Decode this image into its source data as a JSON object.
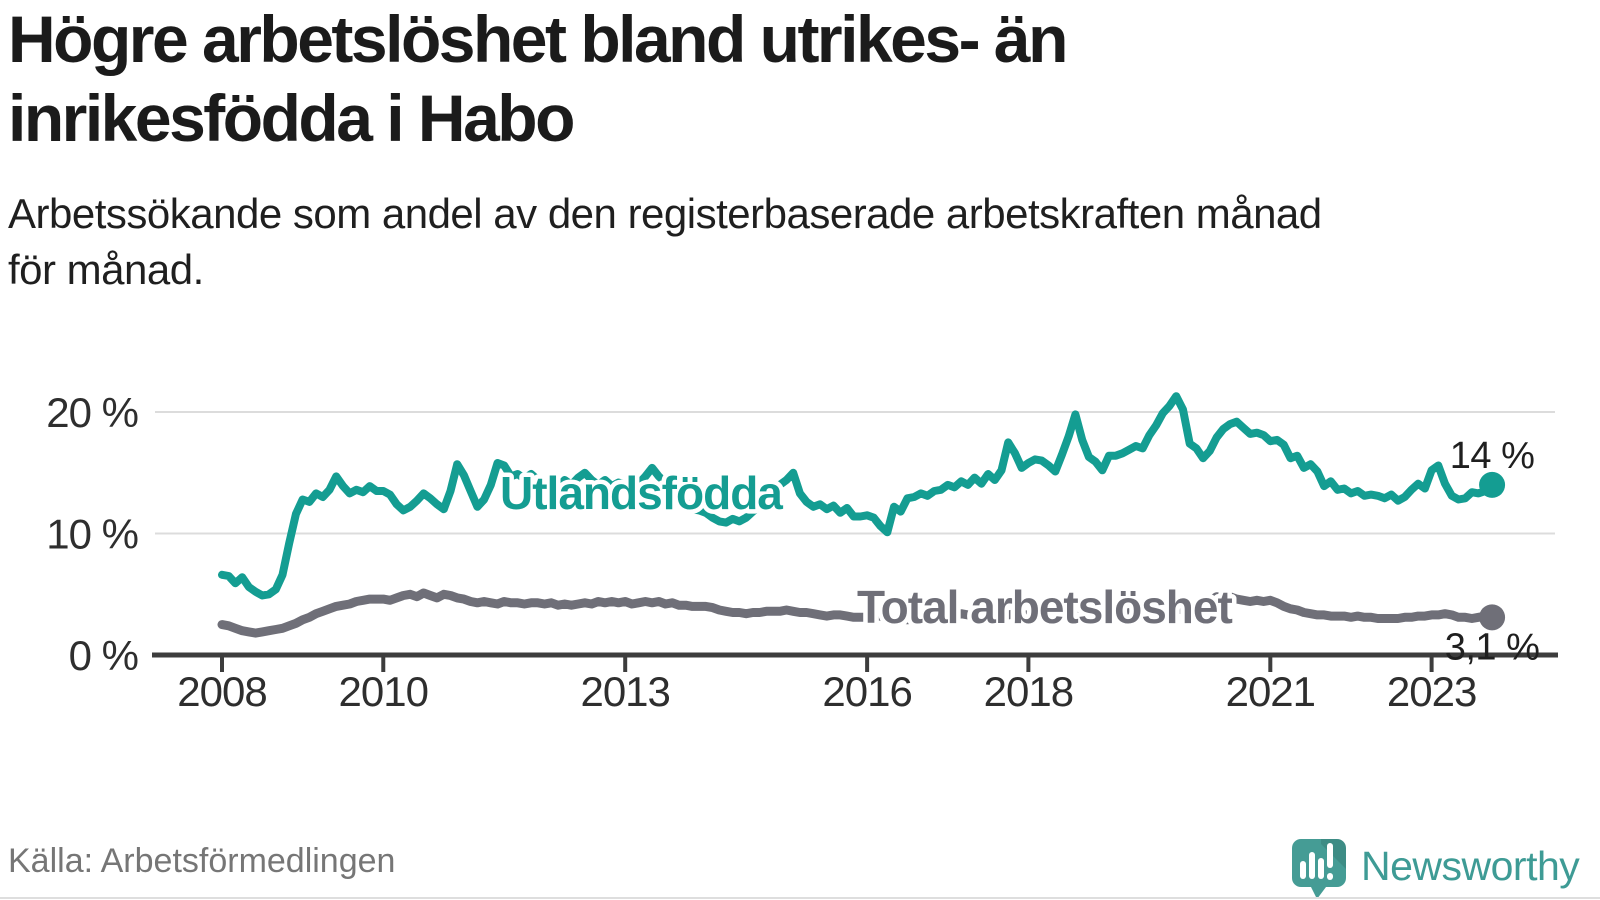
{
  "header": {
    "title_lines": [
      "Högre arbetslöshet bland utrikes- än",
      "inrikesfödda i Habo"
    ],
    "subtitle_lines": [
      "Arbetssökande som andel av den registerbaserade arbetskraften månad",
      "för månad."
    ]
  },
  "footer": {
    "source": "Källa: Arbetsförmedlingen",
    "brand": "Newsworthy"
  },
  "colors": {
    "foreign_born_line": "#149d92",
    "total_line": "#6f6f78",
    "axis": "#3d3d3d",
    "grid": "#dcdcdc",
    "tick_label": "#2e2e2e",
    "value_label": "#1f1f1f",
    "brand_teal": "#3e9b95",
    "source_text": "#767676"
  },
  "chart_data": {
    "type": "line",
    "title": "Högre arbetslöshet bland utrikes- än inrikesfödda i Habo",
    "subtitle": "Arbetssökande som andel av den registerbaserade arbetskraften månad för månad.",
    "unit": "%",
    "frequency": "monthly",
    "x_start": "2008-01",
    "x_end": "2023-10",
    "xlabel": "",
    "ylabel": "",
    "ylim": [
      0,
      22
    ],
    "grid": "horizontal",
    "legend_position": "inline-labels",
    "x_tick_years": [
      2008,
      2010,
      2013,
      2016,
      2018,
      2021,
      2023
    ],
    "y_ticks": [
      {
        "value": 0,
        "label": "0 %"
      },
      {
        "value": 10,
        "label": "10 %"
      },
      {
        "value": 20,
        "label": "20 %"
      }
    ],
    "source": "Arbetsförmedlingen",
    "series": [
      {
        "name": "Utlandsfödda",
        "color": "#149d92",
        "end_label": "14 %",
        "end_value": 14.0,
        "values": [
          6.6,
          6.5,
          5.9,
          6.4,
          5.6,
          5.2,
          4.9,
          5.0,
          5.4,
          6.6,
          9.2,
          11.6,
          12.8,
          12.6,
          13.3,
          13.0,
          13.6,
          14.7,
          13.9,
          13.3,
          13.6,
          13.4,
          13.9,
          13.5,
          13.5,
          13.2,
          12.4,
          11.9,
          12.2,
          12.7,
          13.3,
          12.9,
          12.4,
          12.0,
          13.5,
          15.7,
          14.8,
          13.5,
          12.2,
          12.8,
          14.0,
          15.8,
          15.6,
          14.7,
          14.9,
          14.5,
          14.9,
          14.4,
          13.9,
          14.3,
          13.8,
          14.4,
          14.0,
          14.6,
          15.0,
          14.4,
          14.0,
          14.4,
          13.9,
          14.2,
          14.0,
          14.4,
          14.1,
          14.7,
          15.4,
          14.7,
          14.2,
          13.7,
          13.2,
          12.6,
          12.0,
          11.9,
          11.7,
          11.3,
          11.0,
          10.9,
          11.2,
          11.0,
          11.3,
          11.8,
          12.3,
          12.8,
          13.5,
          14.0,
          14.4,
          15.0,
          13.3,
          12.6,
          12.2,
          12.4,
          12.0,
          12.3,
          11.7,
          12.1,
          11.4,
          11.4,
          11.5,
          11.3,
          10.6,
          10.1,
          12.2,
          11.8,
          12.9,
          13.0,
          13.3,
          13.1,
          13.5,
          13.6,
          14.0,
          13.8,
          14.3,
          14.0,
          14.6,
          14.1,
          14.9,
          14.4,
          15.2,
          17.5,
          16.6,
          15.4,
          15.8,
          16.1,
          16.0,
          15.6,
          15.1,
          16.5,
          18.0,
          19.8,
          17.7,
          16.3,
          15.9,
          15.2,
          16.4,
          16.4,
          16.6,
          16.9,
          17.2,
          17.0,
          18.1,
          18.9,
          19.9,
          20.5,
          21.3,
          20.2,
          17.4,
          17.0,
          16.2,
          16.8,
          17.9,
          18.6,
          19.0,
          19.2,
          18.7,
          18.2,
          18.3,
          18.1,
          17.6,
          17.7,
          17.3,
          16.2,
          16.4,
          15.4,
          15.7,
          15.1,
          13.9,
          14.3,
          13.6,
          13.7,
          13.3,
          13.5,
          13.1,
          13.2,
          13.1,
          12.9,
          13.2,
          12.7,
          13.0,
          13.6,
          14.1,
          13.7,
          15.2,
          15.6,
          14.1,
          13.1,
          12.8,
          12.9,
          13.4,
          13.3,
          13.5,
          14.0
        ]
      },
      {
        "name": "Total arbetslöshet",
        "color": "#6f6f78",
        "end_label": "3,1 %",
        "end_value": 3.1,
        "values": [
          2.5,
          2.4,
          2.2,
          2.0,
          1.9,
          1.8,
          1.9,
          2.0,
          2.1,
          2.2,
          2.4,
          2.6,
          2.9,
          3.1,
          3.4,
          3.6,
          3.8,
          4.0,
          4.1,
          4.2,
          4.4,
          4.5,
          4.6,
          4.6,
          4.6,
          4.5,
          4.7,
          4.9,
          5.0,
          4.8,
          5.1,
          4.9,
          4.7,
          5.0,
          4.9,
          4.7,
          4.6,
          4.4,
          4.3,
          4.4,
          4.3,
          4.2,
          4.4,
          4.3,
          4.3,
          4.2,
          4.3,
          4.3,
          4.2,
          4.3,
          4.1,
          4.2,
          4.1,
          4.2,
          4.3,
          4.2,
          4.4,
          4.3,
          4.4,
          4.3,
          4.4,
          4.2,
          4.3,
          4.4,
          4.3,
          4.4,
          4.2,
          4.3,
          4.1,
          4.1,
          4.0,
          4.0,
          4.0,
          3.9,
          3.7,
          3.6,
          3.5,
          3.5,
          3.4,
          3.5,
          3.5,
          3.6,
          3.6,
          3.6,
          3.7,
          3.6,
          3.5,
          3.5,
          3.4,
          3.3,
          3.2,
          3.3,
          3.3,
          3.2,
          3.1,
          3.1,
          3.1,
          3.2,
          3.2,
          3.0,
          2.9,
          3.0,
          2.9,
          3.0,
          3.1,
          3.1,
          3.2,
          3.2,
          3.3,
          3.2,
          3.4,
          3.3,
          3.2,
          3.3,
          3.2,
          3.3,
          3.4,
          3.3,
          3.4,
          3.3,
          3.3,
          3.2,
          3.3,
          3.2,
          3.1,
          3.2,
          3.3,
          3.4,
          3.3,
          3.2,
          3.3,
          3.4,
          3.4,
          3.5,
          3.4,
          3.5,
          3.6,
          3.5,
          3.6,
          3.7,
          3.6,
          3.7,
          3.8,
          3.7,
          3.8,
          3.7,
          3.9,
          4.4,
          4.8,
          4.7,
          4.8,
          4.6,
          4.5,
          4.4,
          4.5,
          4.4,
          4.5,
          4.3,
          4.0,
          3.8,
          3.7,
          3.5,
          3.4,
          3.3,
          3.3,
          3.2,
          3.2,
          3.2,
          3.1,
          3.2,
          3.1,
          3.1,
          3.0,
          3.0,
          3.0,
          3.0,
          3.1,
          3.1,
          3.2,
          3.2,
          3.3,
          3.3,
          3.4,
          3.3,
          3.1,
          3.1,
          3.0,
          3.1,
          3.2,
          3.1
        ]
      }
    ]
  }
}
